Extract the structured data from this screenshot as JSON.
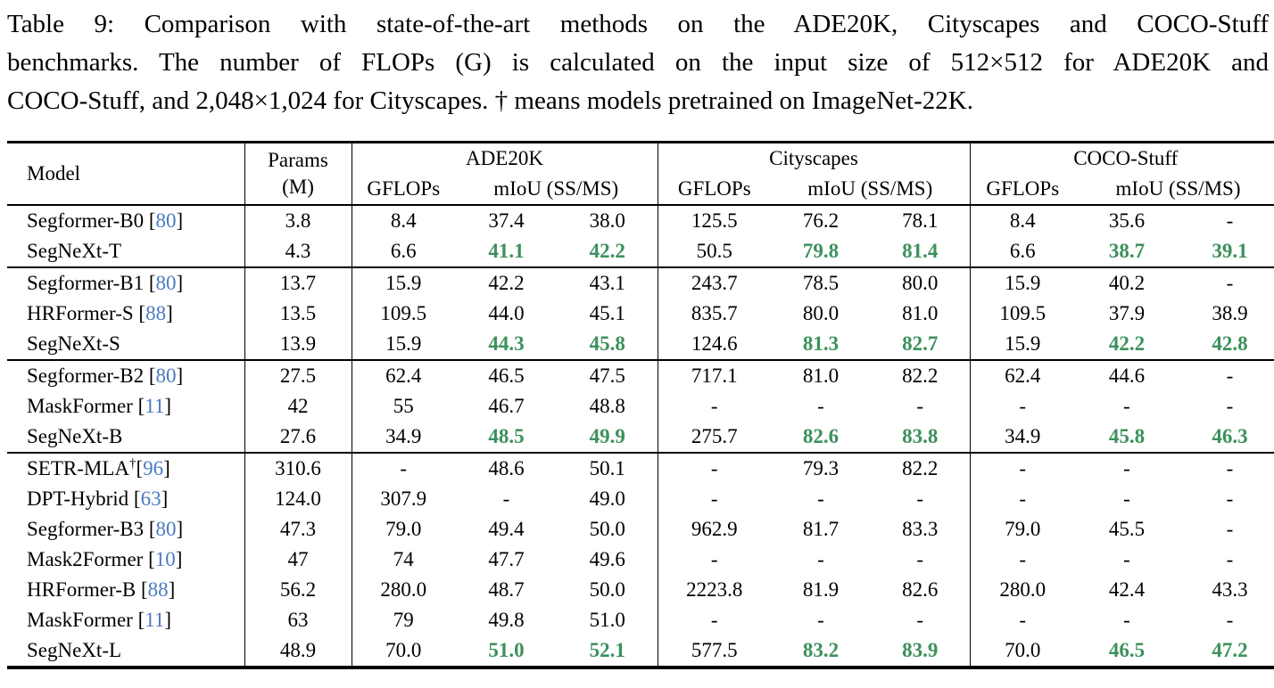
{
  "caption": {
    "lines": [
      "Table 9: Comparison with state-of-the-art methods on the ADE20K, Cityscapes and COCO-Stuff",
      "benchmarks. The number of FLOPs (G) is calculated on the input size of 512×512 for ADE20K and",
      "COCO-Stuff, and 2,048×1,024 for Cityscapes. † means models pretrained on ImageNet-22K."
    ]
  },
  "colors": {
    "highlight_green": "#3c915c",
    "citation_blue": "#4b7ac2",
    "text_black": "#000000"
  },
  "table": {
    "columns": {
      "model": "Model",
      "params_line1": "Params",
      "params_line2": "(M)",
      "benchmarks": [
        "ADE20K",
        "Cityscapes",
        "COCO-Stuff"
      ],
      "sub_gflops": "GFLOPs",
      "sub_miou": "mIoU (SS/MS)"
    },
    "groups": [
      {
        "rows": [
          {
            "model": "Segformer-B0",
            "cite": "80",
            "dagger": null,
            "space": true,
            "params": "3.8",
            "cells": [
              {
                "v": "8.4"
              },
              {
                "v": "37.4"
              },
              {
                "v": "38.0"
              },
              {
                "v": "125.5"
              },
              {
                "v": "76.2"
              },
              {
                "v": "78.1"
              },
              {
                "v": "8.4"
              },
              {
                "v": "35.6"
              },
              {
                "v": "-"
              }
            ]
          },
          {
            "model": "SegNeXt-T",
            "cite": null,
            "dagger": null,
            "space": true,
            "params": "4.3",
            "cells": [
              {
                "v": "6.6"
              },
              {
                "v": "41.1",
                "hl": true
              },
              {
                "v": "42.2",
                "hl": true
              },
              {
                "v": "50.5"
              },
              {
                "v": "79.8",
                "hl": true
              },
              {
                "v": "81.4",
                "hl": true
              },
              {
                "v": "6.6"
              },
              {
                "v": "38.7",
                "hl": true
              },
              {
                "v": "39.1",
                "hl": true
              }
            ]
          }
        ]
      },
      {
        "rows": [
          {
            "model": "Segformer-B1",
            "cite": "80",
            "dagger": null,
            "space": true,
            "params": "13.7",
            "cells": [
              {
                "v": "15.9"
              },
              {
                "v": "42.2"
              },
              {
                "v": "43.1"
              },
              {
                "v": "243.7"
              },
              {
                "v": "78.5"
              },
              {
                "v": "80.0"
              },
              {
                "v": "15.9"
              },
              {
                "v": "40.2"
              },
              {
                "v": "-"
              }
            ]
          },
          {
            "model": "HRFormer-S",
            "cite": "88",
            "dagger": null,
            "space": true,
            "params": "13.5",
            "cells": [
              {
                "v": "109.5"
              },
              {
                "v": "44.0"
              },
              {
                "v": "45.1"
              },
              {
                "v": "835.7"
              },
              {
                "v": "80.0"
              },
              {
                "v": "81.0"
              },
              {
                "v": "109.5"
              },
              {
                "v": "37.9"
              },
              {
                "v": "38.9"
              }
            ]
          },
          {
            "model": "SegNeXt-S",
            "cite": null,
            "dagger": null,
            "space": true,
            "params": "13.9",
            "cells": [
              {
                "v": "15.9"
              },
              {
                "v": "44.3",
                "hl": true
              },
              {
                "v": "45.8",
                "hl": true
              },
              {
                "v": "124.6"
              },
              {
                "v": "81.3",
                "hl": true
              },
              {
                "v": "82.7",
                "hl": true
              },
              {
                "v": "15.9"
              },
              {
                "v": "42.2",
                "hl": true
              },
              {
                "v": "42.8",
                "hl": true
              }
            ]
          }
        ]
      },
      {
        "rows": [
          {
            "model": "Segformer-B2",
            "cite": "80",
            "dagger": null,
            "space": true,
            "params": "27.5",
            "cells": [
              {
                "v": "62.4"
              },
              {
                "v": "46.5"
              },
              {
                "v": "47.5"
              },
              {
                "v": "717.1"
              },
              {
                "v": "81.0"
              },
              {
                "v": "82.2"
              },
              {
                "v": "62.4"
              },
              {
                "v": "44.6"
              },
              {
                "v": "-"
              }
            ]
          },
          {
            "model": "MaskFormer",
            "cite": "11",
            "dagger": null,
            "space": true,
            "params": "42",
            "cells": [
              {
                "v": "55"
              },
              {
                "v": "46.7"
              },
              {
                "v": "48.8"
              },
              {
                "v": "-"
              },
              {
                "v": "-"
              },
              {
                "v": "-"
              },
              {
                "v": "-"
              },
              {
                "v": "-"
              },
              {
                "v": "-"
              }
            ]
          },
          {
            "model": "SegNeXt-B",
            "cite": null,
            "dagger": null,
            "space": true,
            "params": "27.6",
            "cells": [
              {
                "v": "34.9"
              },
              {
                "v": "48.5",
                "hl": true
              },
              {
                "v": "49.9",
                "hl": true
              },
              {
                "v": "275.7"
              },
              {
                "v": "82.6",
                "hl": true
              },
              {
                "v": "83.8",
                "hl": true
              },
              {
                "v": "34.9"
              },
              {
                "v": "45.8",
                "hl": true
              },
              {
                "v": "46.3",
                "hl": true
              }
            ]
          }
        ]
      },
      {
        "rows": [
          {
            "model": "SETR-MLA",
            "cite": "96",
            "dagger": "†",
            "space": false,
            "params": "310.6",
            "cells": [
              {
                "v": "-"
              },
              {
                "v": "48.6"
              },
              {
                "v": "50.1"
              },
              {
                "v": "-"
              },
              {
                "v": "79.3"
              },
              {
                "v": "82.2"
              },
              {
                "v": "-"
              },
              {
                "v": "-"
              },
              {
                "v": "-"
              }
            ]
          },
          {
            "model": "DPT-Hybrid",
            "cite": "63",
            "dagger": null,
            "space": true,
            "params": "124.0",
            "cells": [
              {
                "v": "307.9"
              },
              {
                "v": "-"
              },
              {
                "v": "49.0"
              },
              {
                "v": "-"
              },
              {
                "v": "-"
              },
              {
                "v": "-"
              },
              {
                "v": "-"
              },
              {
                "v": "-"
              },
              {
                "v": "-"
              }
            ]
          },
          {
            "model": "Segformer-B3",
            "cite": "80",
            "dagger": null,
            "space": true,
            "params": "47.3",
            "cells": [
              {
                "v": "79.0"
              },
              {
                "v": "49.4"
              },
              {
                "v": "50.0"
              },
              {
                "v": "962.9"
              },
              {
                "v": "81.7"
              },
              {
                "v": "83.3"
              },
              {
                "v": "79.0"
              },
              {
                "v": "45.5"
              },
              {
                "v": "-"
              }
            ]
          },
          {
            "model": "Mask2Former",
            "cite": "10",
            "dagger": null,
            "space": true,
            "params": "47",
            "cells": [
              {
                "v": "74"
              },
              {
                "v": "47.7"
              },
              {
                "v": "49.6"
              },
              {
                "v": "-"
              },
              {
                "v": "-"
              },
              {
                "v": "-"
              },
              {
                "v": "-"
              },
              {
                "v": "-"
              },
              {
                "v": "-"
              }
            ]
          },
          {
            "model": "HRFormer-B",
            "cite": "88",
            "dagger": null,
            "space": true,
            "params": "56.2",
            "cells": [
              {
                "v": "280.0"
              },
              {
                "v": "48.7"
              },
              {
                "v": "50.0"
              },
              {
                "v": "2223.8"
              },
              {
                "v": "81.9"
              },
              {
                "v": "82.6"
              },
              {
                "v": "280.0"
              },
              {
                "v": "42.4"
              },
              {
                "v": "43.3"
              }
            ]
          },
          {
            "model": "MaskFormer",
            "cite": "11",
            "dagger": null,
            "space": true,
            "params": "63",
            "cells": [
              {
                "v": "79"
              },
              {
                "v": "49.8"
              },
              {
                "v": "51.0"
              },
              {
                "v": "-"
              },
              {
                "v": "-"
              },
              {
                "v": "-"
              },
              {
                "v": "-"
              },
              {
                "v": "-"
              },
              {
                "v": "-"
              }
            ]
          },
          {
            "model": "SegNeXt-L",
            "cite": null,
            "dagger": null,
            "space": true,
            "params": "48.9",
            "cells": [
              {
                "v": "70.0"
              },
              {
                "v": "51.0",
                "hl": true
              },
              {
                "v": "52.1",
                "hl": true
              },
              {
                "v": "577.5"
              },
              {
                "v": "83.2",
                "hl": true
              },
              {
                "v": "83.9",
                "hl": true
              },
              {
                "v": "70.0"
              },
              {
                "v": "46.5",
                "hl": true
              },
              {
                "v": "47.2",
                "hl": true
              }
            ]
          }
        ]
      }
    ]
  }
}
